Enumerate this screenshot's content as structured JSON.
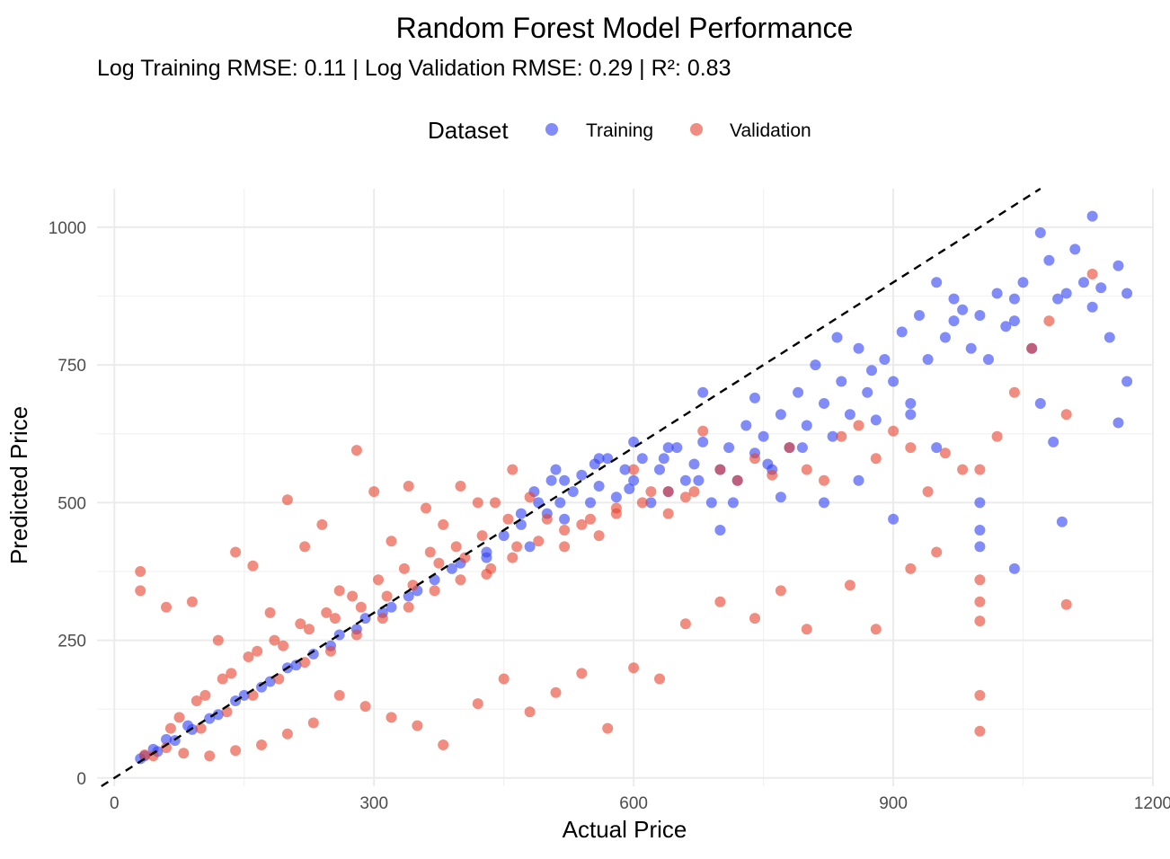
{
  "chart_data": {
    "type": "scatter",
    "title": "Random Forest Model Performance",
    "subtitle": "Log Training RMSE: 0.11 | Log Validation RMSE: 0.29 | R²: 0.83",
    "xlabel": "Actual Price",
    "ylabel": "Predicted Price",
    "xlim": [
      -20,
      1200
    ],
    "ylim": [
      -15,
      1070
    ],
    "x_ticks": [
      0,
      300,
      600,
      900,
      1200
    ],
    "y_ticks": [
      0,
      250,
      500,
      750,
      1000
    ],
    "grid": true,
    "reference_line": {
      "style": "dashed",
      "slope": 1,
      "intercept": 0,
      "color": "#000000"
    },
    "legend": {
      "title": "Dataset",
      "position": "top",
      "entries": [
        "Training",
        "Validation"
      ]
    },
    "series": [
      {
        "name": "Training",
        "color": "#2E3FF5",
        "points": [
          [
            30,
            35
          ],
          [
            45,
            52
          ],
          [
            60,
            70
          ],
          [
            85,
            95
          ],
          [
            120,
            115
          ],
          [
            150,
            150
          ],
          [
            180,
            175
          ],
          [
            210,
            205
          ],
          [
            250,
            240
          ],
          [
            280,
            270
          ],
          [
            310,
            300
          ],
          [
            340,
            330
          ],
          [
            370,
            360
          ],
          [
            400,
            390
          ],
          [
            430,
            410
          ],
          [
            450,
            440
          ],
          [
            470,
            460
          ],
          [
            480,
            420
          ],
          [
            490,
            500
          ],
          [
            500,
            480
          ],
          [
            505,
            540
          ],
          [
            510,
            560
          ],
          [
            520,
            470
          ],
          [
            530,
            520
          ],
          [
            540,
            550
          ],
          [
            550,
            500
          ],
          [
            560,
            530
          ],
          [
            570,
            580
          ],
          [
            580,
            510
          ],
          [
            590,
            560
          ],
          [
            600,
            540
          ],
          [
            610,
            580
          ],
          [
            620,
            500
          ],
          [
            630,
            560
          ],
          [
            640,
            520
          ],
          [
            650,
            600
          ],
          [
            660,
            540
          ],
          [
            670,
            570
          ],
          [
            680,
            610
          ],
          [
            690,
            500
          ],
          [
            700,
            560
          ],
          [
            710,
            600
          ],
          [
            720,
            540
          ],
          [
            730,
            640
          ],
          [
            740,
            590
          ],
          [
            750,
            620
          ],
          [
            760,
            560
          ],
          [
            770,
            660
          ],
          [
            780,
            600
          ],
          [
            790,
            700
          ],
          [
            800,
            640
          ],
          [
            810,
            750
          ],
          [
            820,
            680
          ],
          [
            830,
            620
          ],
          [
            840,
            720
          ],
          [
            850,
            660
          ],
          [
            860,
            780
          ],
          [
            870,
            700
          ],
          [
            880,
            650
          ],
          [
            890,
            760
          ],
          [
            900,
            720
          ],
          [
            910,
            810
          ],
          [
            920,
            680
          ],
          [
            930,
            840
          ],
          [
            940,
            760
          ],
          [
            950,
            900
          ],
          [
            960,
            800
          ],
          [
            970,
            870
          ],
          [
            980,
            850
          ],
          [
            990,
            780
          ],
          [
            1000,
            840
          ],
          [
            1010,
            760
          ],
          [
            1020,
            880
          ],
          [
            1030,
            820
          ],
          [
            1040,
            870
          ],
          [
            1050,
            900
          ],
          [
            1060,
            780
          ],
          [
            1070,
            990
          ],
          [
            1080,
            940
          ],
          [
            1090,
            870
          ],
          [
            1100,
            880
          ],
          [
            1110,
            960
          ],
          [
            1120,
            900
          ],
          [
            1130,
            1020
          ],
          [
            1140,
            890
          ],
          [
            1150,
            800
          ],
          [
            1160,
            930
          ],
          [
            1170,
            880
          ],
          [
            1000,
            500
          ],
          [
            1000,
            450
          ],
          [
            1000,
            420
          ],
          [
            1040,
            380
          ],
          [
            1095,
            465
          ],
          [
            1160,
            645
          ],
          [
            1170,
            720
          ],
          [
            1130,
            855
          ],
          [
            1070,
            680
          ],
          [
            950,
            600
          ],
          [
            900,
            470
          ],
          [
            860,
            540
          ],
          [
            820,
            500
          ],
          [
            770,
            510
          ],
          [
            740,
            690
          ],
          [
            700,
            450
          ],
          [
            680,
            700
          ],
          [
            640,
            600
          ],
          [
            600,
            610
          ],
          [
            560,
            580
          ],
          [
            520,
            540
          ],
          [
            470,
            480
          ],
          [
            430,
            400
          ],
          [
            390,
            380
          ],
          [
            350,
            340
          ],
          [
            320,
            310
          ],
          [
            290,
            290
          ],
          [
            260,
            260
          ],
          [
            230,
            225
          ],
          [
            200,
            200
          ],
          [
            170,
            165
          ],
          [
            140,
            140
          ],
          [
            110,
            108
          ],
          [
            90,
            88
          ],
          [
            70,
            68
          ],
          [
            50,
            48
          ],
          [
            35,
            40
          ],
          [
            1085,
            610
          ],
          [
            1040,
            830
          ],
          [
            970,
            830
          ],
          [
            920,
            660
          ],
          [
            875,
            740
          ],
          [
            835,
            800
          ],
          [
            795,
            600
          ],
          [
            755,
            570
          ],
          [
            715,
            500
          ],
          [
            675,
            540
          ],
          [
            635,
            580
          ],
          [
            595,
            525
          ],
          [
            555,
            570
          ],
          [
            515,
            500
          ],
          [
            485,
            520
          ]
        ]
      },
      {
        "name": "Validation",
        "color": "#E8412C",
        "points": [
          [
            30,
            375
          ],
          [
            30,
            340
          ],
          [
            60,
            310
          ],
          [
            90,
            320
          ],
          [
            120,
            250
          ],
          [
            140,
            410
          ],
          [
            160,
            385
          ],
          [
            180,
            300
          ],
          [
            200,
            505
          ],
          [
            220,
            420
          ],
          [
            240,
            460
          ],
          [
            260,
            340
          ],
          [
            280,
            595
          ],
          [
            300,
            520
          ],
          [
            320,
            430
          ],
          [
            340,
            530
          ],
          [
            360,
            490
          ],
          [
            380,
            460
          ],
          [
            400,
            530
          ],
          [
            420,
            500
          ],
          [
            440,
            500
          ],
          [
            460,
            560
          ],
          [
            480,
            510
          ],
          [
            500,
            470
          ],
          [
            520,
            420
          ],
          [
            540,
            460
          ],
          [
            560,
            440
          ],
          [
            580,
            490
          ],
          [
            600,
            560
          ],
          [
            620,
            520
          ],
          [
            640,
            480
          ],
          [
            660,
            510
          ],
          [
            680,
            630
          ],
          [
            700,
            560
          ],
          [
            720,
            540
          ],
          [
            740,
            580
          ],
          [
            760,
            550
          ],
          [
            780,
            600
          ],
          [
            800,
            560
          ],
          [
            820,
            540
          ],
          [
            840,
            620
          ],
          [
            860,
            640
          ],
          [
            880,
            580
          ],
          [
            900,
            630
          ],
          [
            920,
            600
          ],
          [
            940,
            520
          ],
          [
            960,
            590
          ],
          [
            980,
            560
          ],
          [
            1000,
            560
          ],
          [
            1020,
            620
          ],
          [
            1040,
            700
          ],
          [
            1060,
            780
          ],
          [
            1080,
            830
          ],
          [
            1100,
            660
          ],
          [
            1130,
            915
          ],
          [
            1000,
            360
          ],
          [
            1000,
            320
          ],
          [
            1000,
            285
          ],
          [
            1000,
            150
          ],
          [
            1000,
            85
          ],
          [
            1100,
            315
          ],
          [
            950,
            410
          ],
          [
            920,
            380
          ],
          [
            880,
            270
          ],
          [
            850,
            350
          ],
          [
            800,
            270
          ],
          [
            770,
            340
          ],
          [
            740,
            290
          ],
          [
            700,
            320
          ],
          [
            660,
            280
          ],
          [
            630,
            180
          ],
          [
            600,
            200
          ],
          [
            570,
            90
          ],
          [
            540,
            190
          ],
          [
            510,
            155
          ],
          [
            480,
            120
          ],
          [
            450,
            180
          ],
          [
            420,
            135
          ],
          [
            380,
            60
          ],
          [
            350,
            95
          ],
          [
            320,
            110
          ],
          [
            290,
            130
          ],
          [
            260,
            150
          ],
          [
            230,
            100
          ],
          [
            200,
            80
          ],
          [
            170,
            60
          ],
          [
            140,
            50
          ],
          [
            110,
            40
          ],
          [
            80,
            45
          ],
          [
            60,
            55
          ],
          [
            45,
            40
          ],
          [
            35,
            42
          ],
          [
            65,
            90
          ],
          [
            95,
            140
          ],
          [
            125,
            180
          ],
          [
            155,
            220
          ],
          [
            185,
            250
          ],
          [
            215,
            280
          ],
          [
            245,
            300
          ],
          [
            275,
            330
          ],
          [
            305,
            360
          ],
          [
            335,
            380
          ],
          [
            365,
            410
          ],
          [
            395,
            420
          ],
          [
            425,
            440
          ],
          [
            455,
            470
          ],
          [
            75,
            110
          ],
          [
            105,
            150
          ],
          [
            135,
            190
          ],
          [
            165,
            230
          ],
          [
            195,
            240
          ],
          [
            225,
            270
          ],
          [
            255,
            290
          ],
          [
            285,
            310
          ],
          [
            315,
            330
          ],
          [
            345,
            350
          ],
          [
            375,
            390
          ],
          [
            405,
            400
          ],
          [
            435,
            380
          ],
          [
            465,
            420
          ],
          [
            100,
            90
          ],
          [
            130,
            120
          ],
          [
            160,
            150
          ],
          [
            190,
            180
          ],
          [
            220,
            210
          ],
          [
            250,
            230
          ],
          [
            280,
            260
          ],
          [
            310,
            290
          ],
          [
            340,
            310
          ],
          [
            370,
            340
          ],
          [
            400,
            360
          ],
          [
            430,
            370
          ],
          [
            460,
            400
          ],
          [
            490,
            430
          ],
          [
            520,
            450
          ],
          [
            550,
            470
          ],
          [
            580,
            480
          ],
          [
            610,
            500
          ],
          [
            640,
            520
          ],
          [
            670,
            520
          ]
        ]
      }
    ]
  }
}
